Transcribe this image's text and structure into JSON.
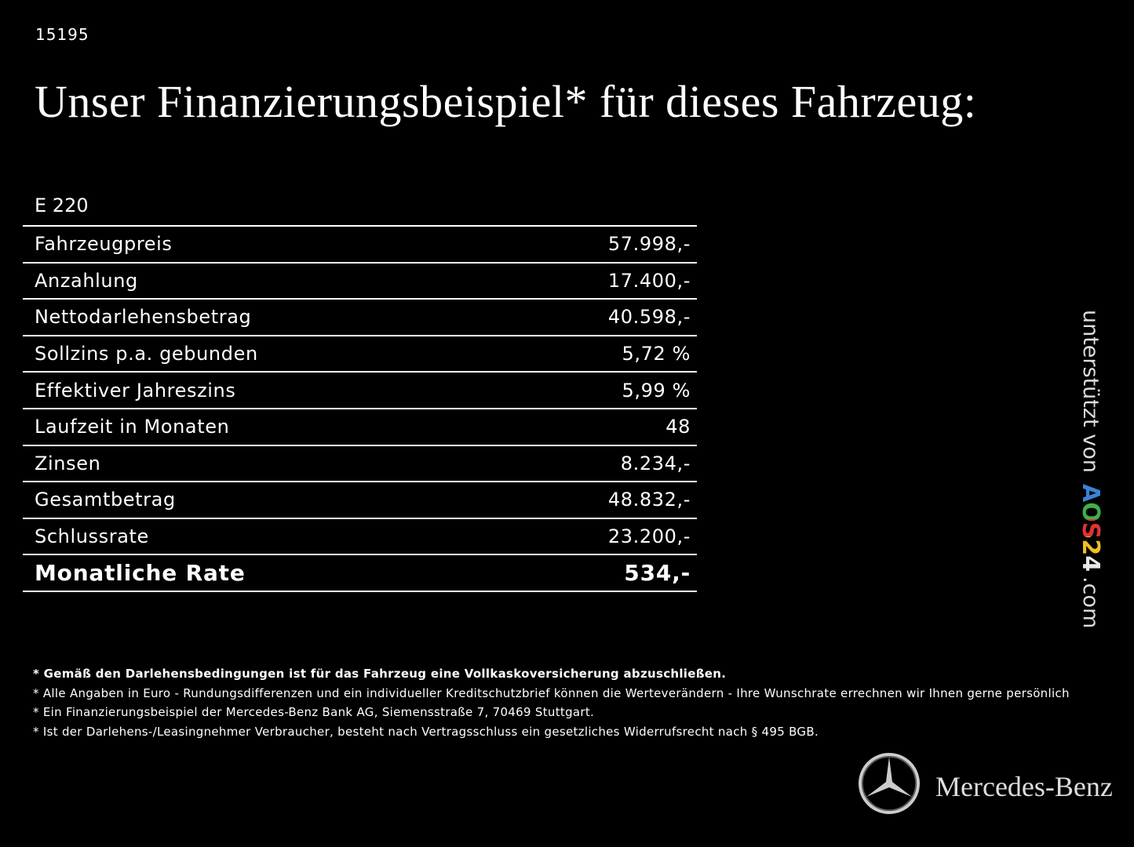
{
  "id": "15195",
  "title": "Unser Finanzierungsbeispiel* für dieses Fahrzeug:",
  "table": {
    "heading": "E 220",
    "rows": [
      [
        "Fahrzeugpreis",
        "57.998,-"
      ],
      [
        "Anzahlung",
        "17.400,-"
      ],
      [
        "Nettodarlehensbetrag",
        "40.598,-"
      ],
      [
        "Sollzins p.a. gebunden",
        "5,72 %"
      ],
      [
        "Effektiver Jahreszins",
        "5,99 %"
      ],
      [
        "Laufzeit in Monaten",
        "48"
      ],
      [
        "Zinsen",
        "8.234,-"
      ],
      [
        "Gesamtbetrag",
        "48.832,-"
      ],
      [
        "Schlussrate",
        "23.200,-"
      ],
      [
        "Monatliche Rate",
        "534,-"
      ]
    ]
  },
  "footnotes": [
    "* Gemäß den Darlehensbedingungen ist für das Fahrzeug eine Vollkaskoversicherung abzuschließen.",
    "* Alle Angaben in Euro - Rundungsdifferenzen und ein individueller Kreditschutzbrief können die Werteverändern - Ihre Wunschrate errechnen wir Ihnen gerne persönlich",
    "* Ein Finanzierungsbeispiel der Mercedes-Benz Bank AG, Siemensstraße 7, 70469 Stuttgart.",
    "* Ist der Darlehens-/Leasingnehmer Verbraucher, besteht nach Vertragsschluss ein gesetzliches Widerrufsrecht nach § 495 BGB."
  ],
  "sidebar": {
    "text": "unterstützt von",
    "logo": "AOS24",
    "suffix": ".com"
  },
  "brand": "Mercedes-Benz"
}
